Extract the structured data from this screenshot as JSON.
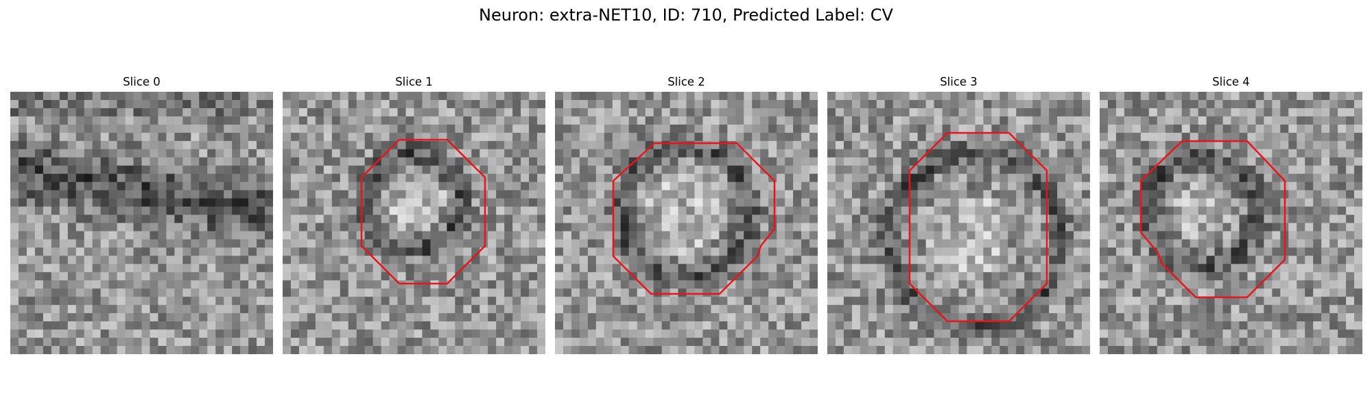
{
  "figure": {
    "title": "Neuron: extra-NET10, ID: 710, Predicted Label: CV"
  },
  "panels": [
    {
      "title": "Slice 0",
      "has_outline": false,
      "seed": 11
    },
    {
      "title": "Slice 1",
      "has_outline": true,
      "seed": 23
    },
    {
      "title": "Slice 2",
      "has_outline": true,
      "seed": 37
    },
    {
      "title": "Slice 3",
      "has_outline": true,
      "seed": 51
    },
    {
      "title": "Slice 4",
      "has_outline": true,
      "seed": 67
    }
  ],
  "colors": {
    "outline": "#e8141c",
    "background": "#ffffff"
  },
  "colormap": "gray"
}
